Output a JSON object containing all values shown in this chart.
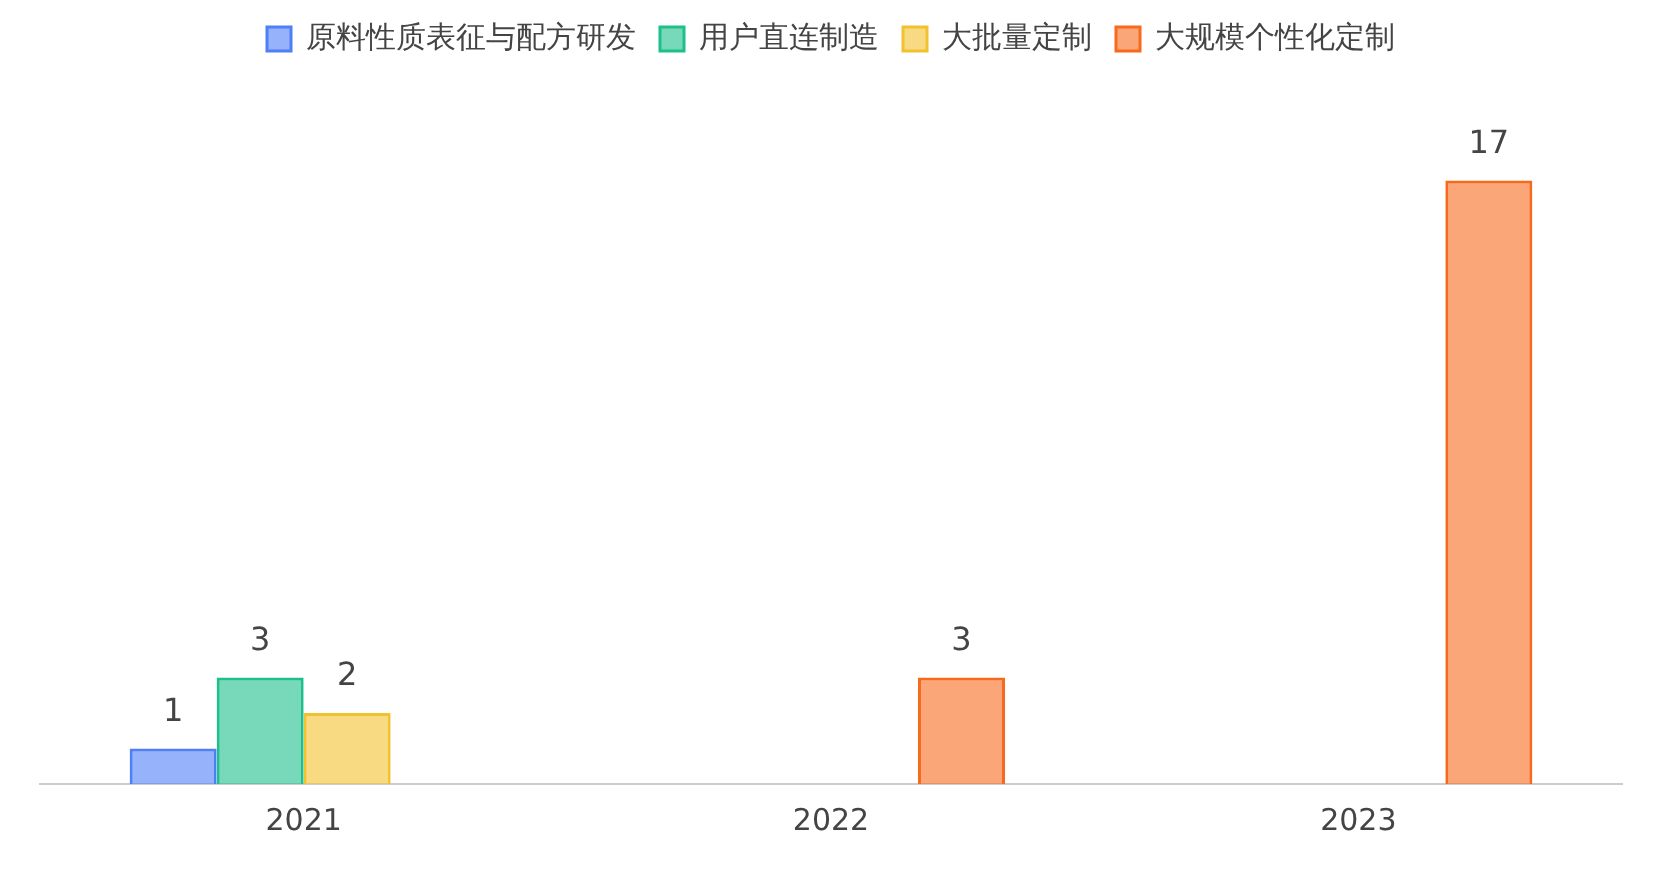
{
  "chart_data": {
    "type": "bar",
    "categories": [
      "2021",
      "2022",
      "2023"
    ],
    "series": [
      {
        "name": "原料性质表征与配方研发",
        "color": "#4f7ff7",
        "values": [
          1,
          null,
          null
        ]
      },
      {
        "name": "用户直连制造",
        "color": "#1dbf8a",
        "values": [
          3,
          null,
          null
        ]
      },
      {
        "name": "大批量定制",
        "color": "#f2c12e",
        "values": [
          2,
          null,
          null
        ]
      },
      {
        "name": "大规模个性化定制",
        "color": "#f76a1e",
        "values": [
          null,
          3,
          17
        ]
      }
    ],
    "data_labels": true,
    "legend": "top",
    "grid": false
  }
}
